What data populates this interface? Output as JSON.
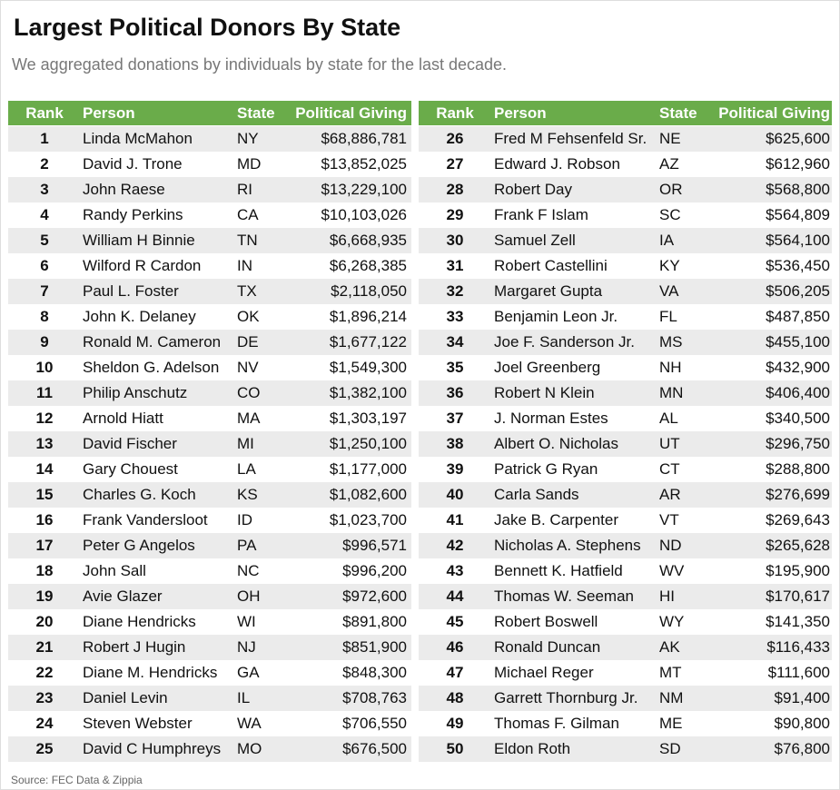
{
  "header": {
    "title": "Largest Political Donors By State",
    "subtitle": "We aggregated donations by individuals by state for the last decade."
  },
  "tables": [
    {
      "columns": [
        "Rank",
        "Person",
        "State",
        "Political Giving"
      ],
      "rows": [
        [
          "1",
          "Linda McMahon",
          "NY",
          "$68,886,781"
        ],
        [
          "2",
          "David J. Trone",
          "MD",
          "$13,852,025"
        ],
        [
          "3",
          "John Raese",
          "RI",
          "$13,229,100"
        ],
        [
          "4",
          "Randy Perkins",
          "CA",
          "$10,103,026"
        ],
        [
          "5",
          "William H Binnie",
          "TN",
          "$6,668,935"
        ],
        [
          "6",
          "Wilford R Cardon",
          "IN",
          "$6,268,385"
        ],
        [
          "7",
          "Paul L. Foster",
          "TX",
          "$2,118,050"
        ],
        [
          "8",
          "John K. Delaney",
          "OK",
          "$1,896,214"
        ],
        [
          "9",
          "Ronald M. Cameron",
          "DE",
          "$1,677,122"
        ],
        [
          "10",
          "Sheldon G. Adelson",
          "NV",
          "$1,549,300"
        ],
        [
          "11",
          "Philip Anschutz",
          "CO",
          "$1,382,100"
        ],
        [
          "12",
          "Arnold Hiatt",
          "MA",
          "$1,303,197"
        ],
        [
          "13",
          "David Fischer",
          "MI",
          "$1,250,100"
        ],
        [
          "14",
          "Gary Chouest",
          "LA",
          "$1,177,000"
        ],
        [
          "15",
          "Charles G. Koch",
          "KS",
          "$1,082,600"
        ],
        [
          "16",
          "Frank Vandersloot",
          "ID",
          "$1,023,700"
        ],
        [
          "17",
          "Peter G Angelos",
          "PA",
          "$996,571"
        ],
        [
          "18",
          "John Sall",
          "NC",
          "$996,200"
        ],
        [
          "19",
          "Avie Glazer",
          "OH",
          "$972,600"
        ],
        [
          "20",
          "Diane Hendricks",
          "WI",
          "$891,800"
        ],
        [
          "21",
          "Robert J Hugin",
          "NJ",
          "$851,900"
        ],
        [
          "22",
          "Diane M. Hendricks",
          "GA",
          "$848,300"
        ],
        [
          "23",
          "Daniel Levin",
          "IL",
          "$708,763"
        ],
        [
          "24",
          "Steven Webster",
          "WA",
          "$706,550"
        ],
        [
          "25",
          "David C Humphreys",
          "MO",
          "$676,500"
        ]
      ]
    },
    {
      "columns": [
        "Rank",
        "Person",
        "State",
        "Political Giving"
      ],
      "rows": [
        [
          "26",
          "Fred M Fehsenfeld Sr.",
          "NE",
          "$625,600"
        ],
        [
          "27",
          "Edward J. Robson",
          "AZ",
          "$612,960"
        ],
        [
          "28",
          "Robert Day",
          "OR",
          "$568,800"
        ],
        [
          "29",
          "Frank F Islam",
          "SC",
          "$564,809"
        ],
        [
          "30",
          "Samuel Zell",
          "IA",
          "$564,100"
        ],
        [
          "31",
          "Robert Castellini",
          "KY",
          "$536,450"
        ],
        [
          "32",
          "Margaret Gupta",
          "VA",
          "$506,205"
        ],
        [
          "33",
          "Benjamin Leon Jr.",
          "FL",
          "$487,850"
        ],
        [
          "34",
          "Joe F. Sanderson Jr.",
          "MS",
          "$455,100"
        ],
        [
          "35",
          "Joel Greenberg",
          "NH",
          "$432,900"
        ],
        [
          "36",
          "Robert N Klein",
          "MN",
          "$406,400"
        ],
        [
          "37",
          "J. Norman Estes",
          "AL",
          "$340,500"
        ],
        [
          "38",
          "Albert O. Nicholas",
          "UT",
          "$296,750"
        ],
        [
          "39",
          "Patrick G Ryan",
          "CT",
          "$288,800"
        ],
        [
          "40",
          "Carla Sands",
          "AR",
          "$276,699"
        ],
        [
          "41",
          "Jake B. Carpenter",
          "VT",
          "$269,643"
        ],
        [
          "42",
          "Nicholas A. Stephens",
          "ND",
          "$265,628"
        ],
        [
          "43",
          "Bennett K. Hatfield",
          "WV",
          "$195,900"
        ],
        [
          "44",
          "Thomas W. Seeman",
          "HI",
          "$170,617"
        ],
        [
          "45",
          "Robert Boswell",
          "WY",
          "$141,350"
        ],
        [
          "46",
          "Ronald Duncan",
          "AK",
          "$116,433"
        ],
        [
          "47",
          "Michael Reger",
          "MT",
          "$111,600"
        ],
        [
          "48",
          "Garrett Thornburg Jr.",
          "NM",
          "$91,400"
        ],
        [
          "49",
          "Thomas F. Gilman",
          "ME",
          "$90,800"
        ],
        [
          "50",
          "Eldon Roth",
          "SD",
          "$76,800"
        ]
      ]
    }
  ],
  "footer": {
    "source": "Source: FEC Data & Zippia"
  }
}
